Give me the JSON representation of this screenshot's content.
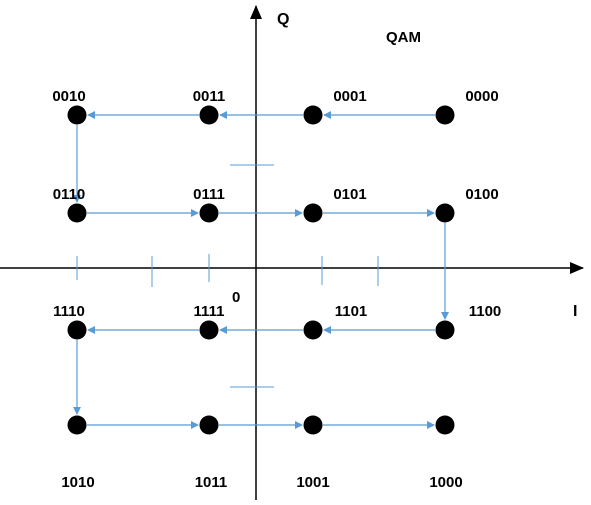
{
  "title": "QAM",
  "axes": {
    "horizontal_label": "I",
    "vertical_label": "Q",
    "origin_label": "0"
  },
  "colors": {
    "axis": "#000000",
    "point": "#000000",
    "arrow": "#5b9bd5",
    "text": "#000000"
  },
  "points": [
    {
      "code": "0010",
      "i": -3,
      "q": 3
    },
    {
      "code": "0011",
      "i": -1,
      "q": 3
    },
    {
      "code": "0001",
      "i": 1,
      "q": 3
    },
    {
      "code": "0000",
      "i": 3,
      "q": 3
    },
    {
      "code": "0110",
      "i": -3,
      "q": 1
    },
    {
      "code": "0111",
      "i": -1,
      "q": 1
    },
    {
      "code": "0101",
      "i": 1,
      "q": 1
    },
    {
      "code": "0100",
      "i": 3,
      "q": 1
    },
    {
      "code": "1110",
      "i": -3,
      "q": -1
    },
    {
      "code": "1111",
      "i": -1,
      "q": -1
    },
    {
      "code": "1101",
      "i": 1,
      "q": -1
    },
    {
      "code": "1100",
      "i": 3,
      "q": -1
    },
    {
      "code": "1010",
      "i": -3,
      "q": -3
    },
    {
      "code": "1011",
      "i": -1,
      "q": -3
    },
    {
      "code": "1001",
      "i": 1,
      "q": -3
    },
    {
      "code": "1000",
      "i": 3,
      "q": -3
    }
  ],
  "path": [
    "0000",
    "0001",
    "0011",
    "0010",
    "0110",
    "0111",
    "0101",
    "0100",
    "1100",
    "1101",
    "1111",
    "1110",
    "1010",
    "1011",
    "1001",
    "1000"
  ]
}
